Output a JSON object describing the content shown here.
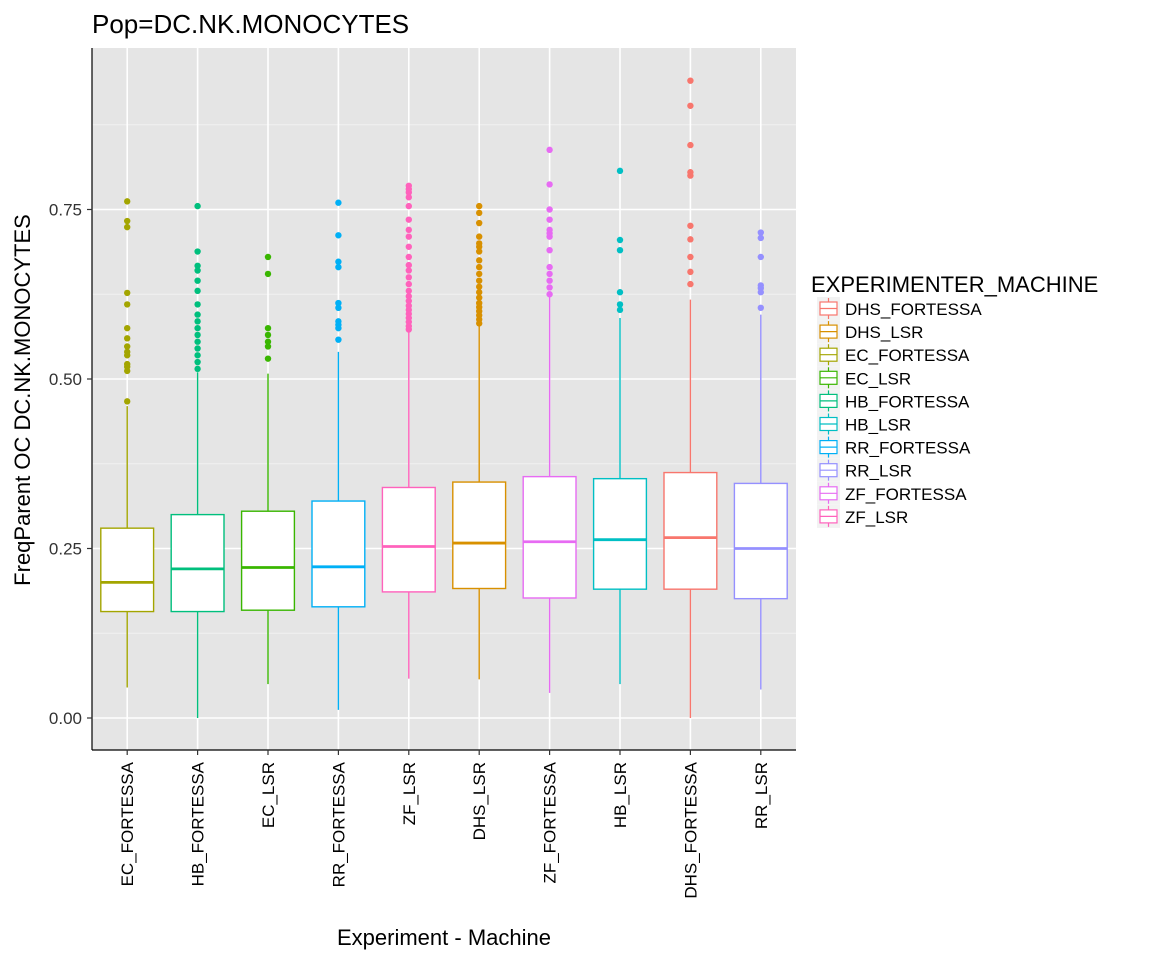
{
  "chart_data": {
    "type": "boxplot",
    "title": "Pop=DC.NK.MONOCYTES",
    "xlabel": "Experiment - Machine",
    "ylabel": "FreqParent OC  DC.NK.MONOCYTES",
    "ylim": [
      -0.05,
      0.95
    ],
    "yticks": [
      0.0,
      0.25,
      0.5,
      0.75
    ],
    "ytick_labels": [
      "0.00",
      "0.25",
      "0.50",
      "0.75"
    ],
    "grid": true,
    "legend": {
      "title": "EXPERIMENTER_MACHINE",
      "position": "right",
      "entries": [
        {
          "name": "DHS_FORTESSA",
          "color": "#F8766D"
        },
        {
          "name": "DHS_LSR",
          "color": "#D89000"
        },
        {
          "name": "EC_FORTESSA",
          "color": "#A3A500"
        },
        {
          "name": "EC_LSR",
          "color": "#39B600"
        },
        {
          "name": "HB_FORTESSA",
          "color": "#00BF7D"
        },
        {
          "name": "HB_LSR",
          "color": "#00BFC4"
        },
        {
          "name": "RR_FORTESSA",
          "color": "#00B0F6"
        },
        {
          "name": "RR_LSR",
          "color": "#9590FF"
        },
        {
          "name": "ZF_FORTESSA",
          "color": "#E76BF3"
        },
        {
          "name": "ZF_LSR",
          "color": "#FF62BC"
        }
      ]
    },
    "categories": [
      "EC_FORTESSA",
      "HB_FORTESSA",
      "EC_LSR",
      "RR_FORTESSA",
      "ZF_LSR",
      "DHS_LSR",
      "ZF_FORTESSA",
      "HB_LSR",
      "DHS_FORTESSA",
      "RR_LSR"
    ],
    "boxes": [
      {
        "category": "EC_FORTESSA",
        "color": "#A3A500",
        "min": 0.045,
        "q1": 0.157,
        "median": 0.2,
        "q3": 0.28,
        "max": 0.46,
        "outliers": [
          0.467,
          0.512,
          0.518,
          0.522,
          0.535,
          0.54,
          0.548,
          0.56,
          0.575,
          0.61,
          0.627,
          0.724,
          0.733,
          0.762
        ]
      },
      {
        "category": "HB_FORTESSA",
        "color": "#00BF7D",
        "min": 0.0,
        "q1": 0.157,
        "median": 0.22,
        "q3": 0.3,
        "max": 0.51,
        "outliers": [
          0.515,
          0.525,
          0.535,
          0.545,
          0.555,
          0.565,
          0.575,
          0.585,
          0.595,
          0.61,
          0.63,
          0.645,
          0.66,
          0.667,
          0.688,
          0.755
        ]
      },
      {
        "category": "EC_LSR",
        "color": "#39B600",
        "min": 0.05,
        "q1": 0.159,
        "median": 0.222,
        "q3": 0.305,
        "max": 0.508,
        "outliers": [
          0.53,
          0.548,
          0.555,
          0.565,
          0.575,
          0.655,
          0.68
        ]
      },
      {
        "category": "RR_FORTESSA",
        "color": "#00B0F6",
        "min": 0.012,
        "q1": 0.164,
        "median": 0.223,
        "q3": 0.32,
        "max": 0.54,
        "outliers": [
          0.558,
          0.575,
          0.58,
          0.585,
          0.605,
          0.612,
          0.665,
          0.673,
          0.712,
          0.76
        ]
      },
      {
        "category": "ZF_LSR",
        "color": "#FF62BC",
        "min": 0.058,
        "q1": 0.186,
        "median": 0.253,
        "q3": 0.34,
        "max": 0.57,
        "outliers": [
          0.573,
          0.578,
          0.584,
          0.59,
          0.596,
          0.602,
          0.608,
          0.615,
          0.622,
          0.63,
          0.64,
          0.65,
          0.66,
          0.668,
          0.68,
          0.695,
          0.71,
          0.72,
          0.735,
          0.755,
          0.768,
          0.775,
          0.78,
          0.785
        ]
      },
      {
        "category": "DHS_LSR",
        "color": "#D89000",
        "min": 0.057,
        "q1": 0.191,
        "median": 0.258,
        "q3": 0.348,
        "max": 0.578,
        "outliers": [
          0.582,
          0.588,
          0.594,
          0.6,
          0.606,
          0.612,
          0.62,
          0.628,
          0.636,
          0.645,
          0.655,
          0.665,
          0.675,
          0.688,
          0.695,
          0.7,
          0.71,
          0.73,
          0.745,
          0.755
        ]
      },
      {
        "category": "ZF_FORTESSA",
        "color": "#E76BF3",
        "min": 0.037,
        "q1": 0.177,
        "median": 0.26,
        "q3": 0.356,
        "max": 0.622,
        "outliers": [
          0.625,
          0.635,
          0.645,
          0.655,
          0.665,
          0.69,
          0.71,
          0.715,
          0.72,
          0.735,
          0.75,
          0.787,
          0.838
        ]
      },
      {
        "category": "HB_LSR",
        "color": "#00BFC4",
        "min": 0.05,
        "q1": 0.19,
        "median": 0.263,
        "q3": 0.353,
        "max": 0.59,
        "outliers": [
          0.602,
          0.61,
          0.628,
          0.69,
          0.705,
          0.807
        ]
      },
      {
        "category": "DHS_FORTESSA",
        "color": "#F8766D",
        "min": 0.0,
        "q1": 0.19,
        "median": 0.266,
        "q3": 0.362,
        "max": 0.617,
        "outliers": [
          0.64,
          0.658,
          0.68,
          0.706,
          0.726,
          0.8,
          0.805,
          0.845,
          0.903,
          0.94
        ]
      },
      {
        "category": "RR_LSR",
        "color": "#9590FF",
        "min": 0.042,
        "q1": 0.176,
        "median": 0.25,
        "q3": 0.346,
        "max": 0.595,
        "outliers": [
          0.605,
          0.628,
          0.634,
          0.638,
          0.68,
          0.708,
          0.716
        ]
      }
    ]
  }
}
